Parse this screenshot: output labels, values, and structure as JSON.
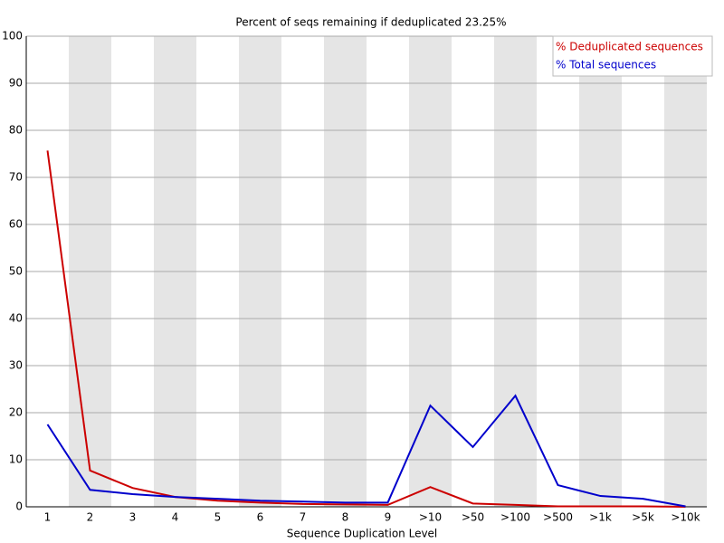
{
  "chart_data": {
    "type": "line",
    "title": "Percent of seqs remaining if deduplicated 23.25%",
    "x_label": "Sequence Duplication Level",
    "categories": [
      "1",
      "2",
      "3",
      "4",
      "5",
      "6",
      "7",
      "8",
      "9",
      ">10",
      ">50",
      ">100",
      ">500",
      ">1k",
      ">5k",
      ">10k"
    ],
    "series": [
      {
        "name": "% Deduplicated sequences",
        "color": "#cc0000",
        "values": [
          75.7,
          7.7,
          4.0,
          2.1,
          1.3,
          0.9,
          0.6,
          0.5,
          0.4,
          4.2,
          0.7,
          0.4,
          0.1,
          0.1,
          0.1,
          0.0
        ]
      },
      {
        "name": "% Total sequences",
        "color": "#0000cc",
        "values": [
          17.5,
          3.6,
          2.7,
          2.1,
          1.7,
          1.3,
          1.1,
          0.9,
          0.9,
          21.5,
          12.7,
          23.6,
          4.6,
          2.3,
          1.7,
          0.1
        ]
      }
    ],
    "ylim": [
      0,
      100
    ],
    "yticks": [
      0,
      10,
      20,
      30,
      40,
      50,
      60,
      70,
      80,
      90,
      100
    ],
    "grid": true,
    "legend": "upper right"
  }
}
